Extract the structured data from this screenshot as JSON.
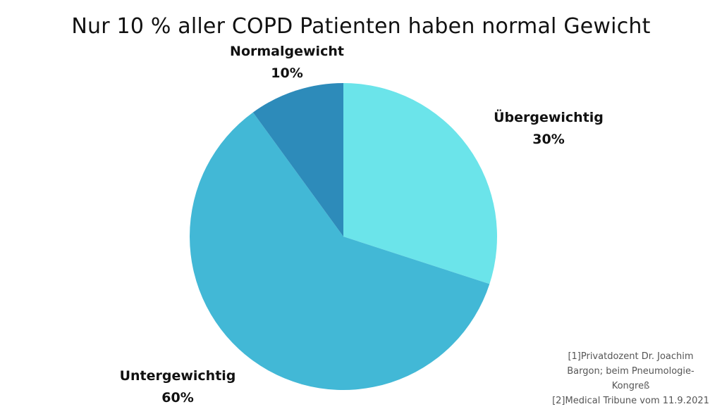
{
  "chart_data": {
    "type": "pie",
    "title": "Nur 10 % aller COPD Patienten haben normal Gewicht",
    "slices": [
      {
        "name": "Übergewichtig",
        "value": 30,
        "value_label": "30%",
        "color": "#6be4ea"
      },
      {
        "name": "Untergewichtig",
        "value": 60,
        "value_label": "60%",
        "color": "#42b8d6"
      },
      {
        "name": "Normalgewicht",
        "value": 10,
        "value_label": "10%",
        "color": "#2d8bba"
      }
    ],
    "start_angle_deg": 0,
    "direction": "clockwise",
    "legend": "none"
  },
  "sources": [
    "[1]Privatdozent Dr. Joachim",
    "Bargon; beim Pneumologie-",
    "Kongreß",
    "[2]Medical Tribune vom 11.9.2021"
  ]
}
